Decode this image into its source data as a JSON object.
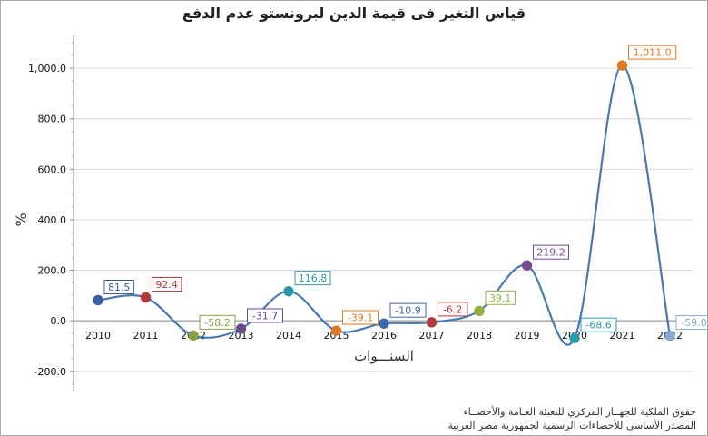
{
  "chart_data": {
    "type": "line",
    "title": "قياس التغير فى قيمة الدين لبرونستو عدم الدفع",
    "xlabel": "السنـــوات",
    "ylabel": "%",
    "categories": [
      "2010",
      "2011",
      "2012",
      "2013",
      "2014",
      "2015",
      "2016",
      "2017",
      "2018",
      "2019",
      "2020",
      "2021",
      "2022"
    ],
    "values": [
      81.5,
      92.4,
      -58.2,
      -31.7,
      116.8,
      -39.1,
      -10.9,
      -6.2,
      39.1,
      219.2,
      -68.6,
      1011.0,
      -59.0
    ],
    "value_labels": [
      "81.5",
      "92.4",
      "-58.2",
      "-31.7",
      "116.8",
      "-39.1",
      "-10.9",
      "-6.2",
      "39.1",
      "219.2",
      "-68.6",
      "1,011.0",
      "-59.0"
    ],
    "point_colors": [
      "#3a5fa0",
      "#b03a3a",
      "#8aa040",
      "#6a4a8a",
      "#2a9aa8",
      "#e07820",
      "#3a6aa8",
      "#b03a3a",
      "#90b040",
      "#7a4a90",
      "#2a9aa8",
      "#e07820",
      "#8aa8d0"
    ],
    "line_color": "#4a78b0",
    "ylim": [
      -280,
      1130
    ],
    "yticks": [
      -200,
      0,
      200,
      400,
      600,
      800,
      1000
    ],
    "ytick_labels": [
      "-200.0",
      "0.0",
      "200.0",
      "400.0",
      "600.0",
      "800.0",
      "1,000.0"
    ],
    "grid": true,
    "smooth": true
  },
  "footer": {
    "line1": "حقوق الملكية للجهــاز المركزي للتعبئة العـامة والأحصــاء",
    "line2": "المصدر الأساسي للأحصاءات الرسمية لجمهورية مصر العربية"
  }
}
